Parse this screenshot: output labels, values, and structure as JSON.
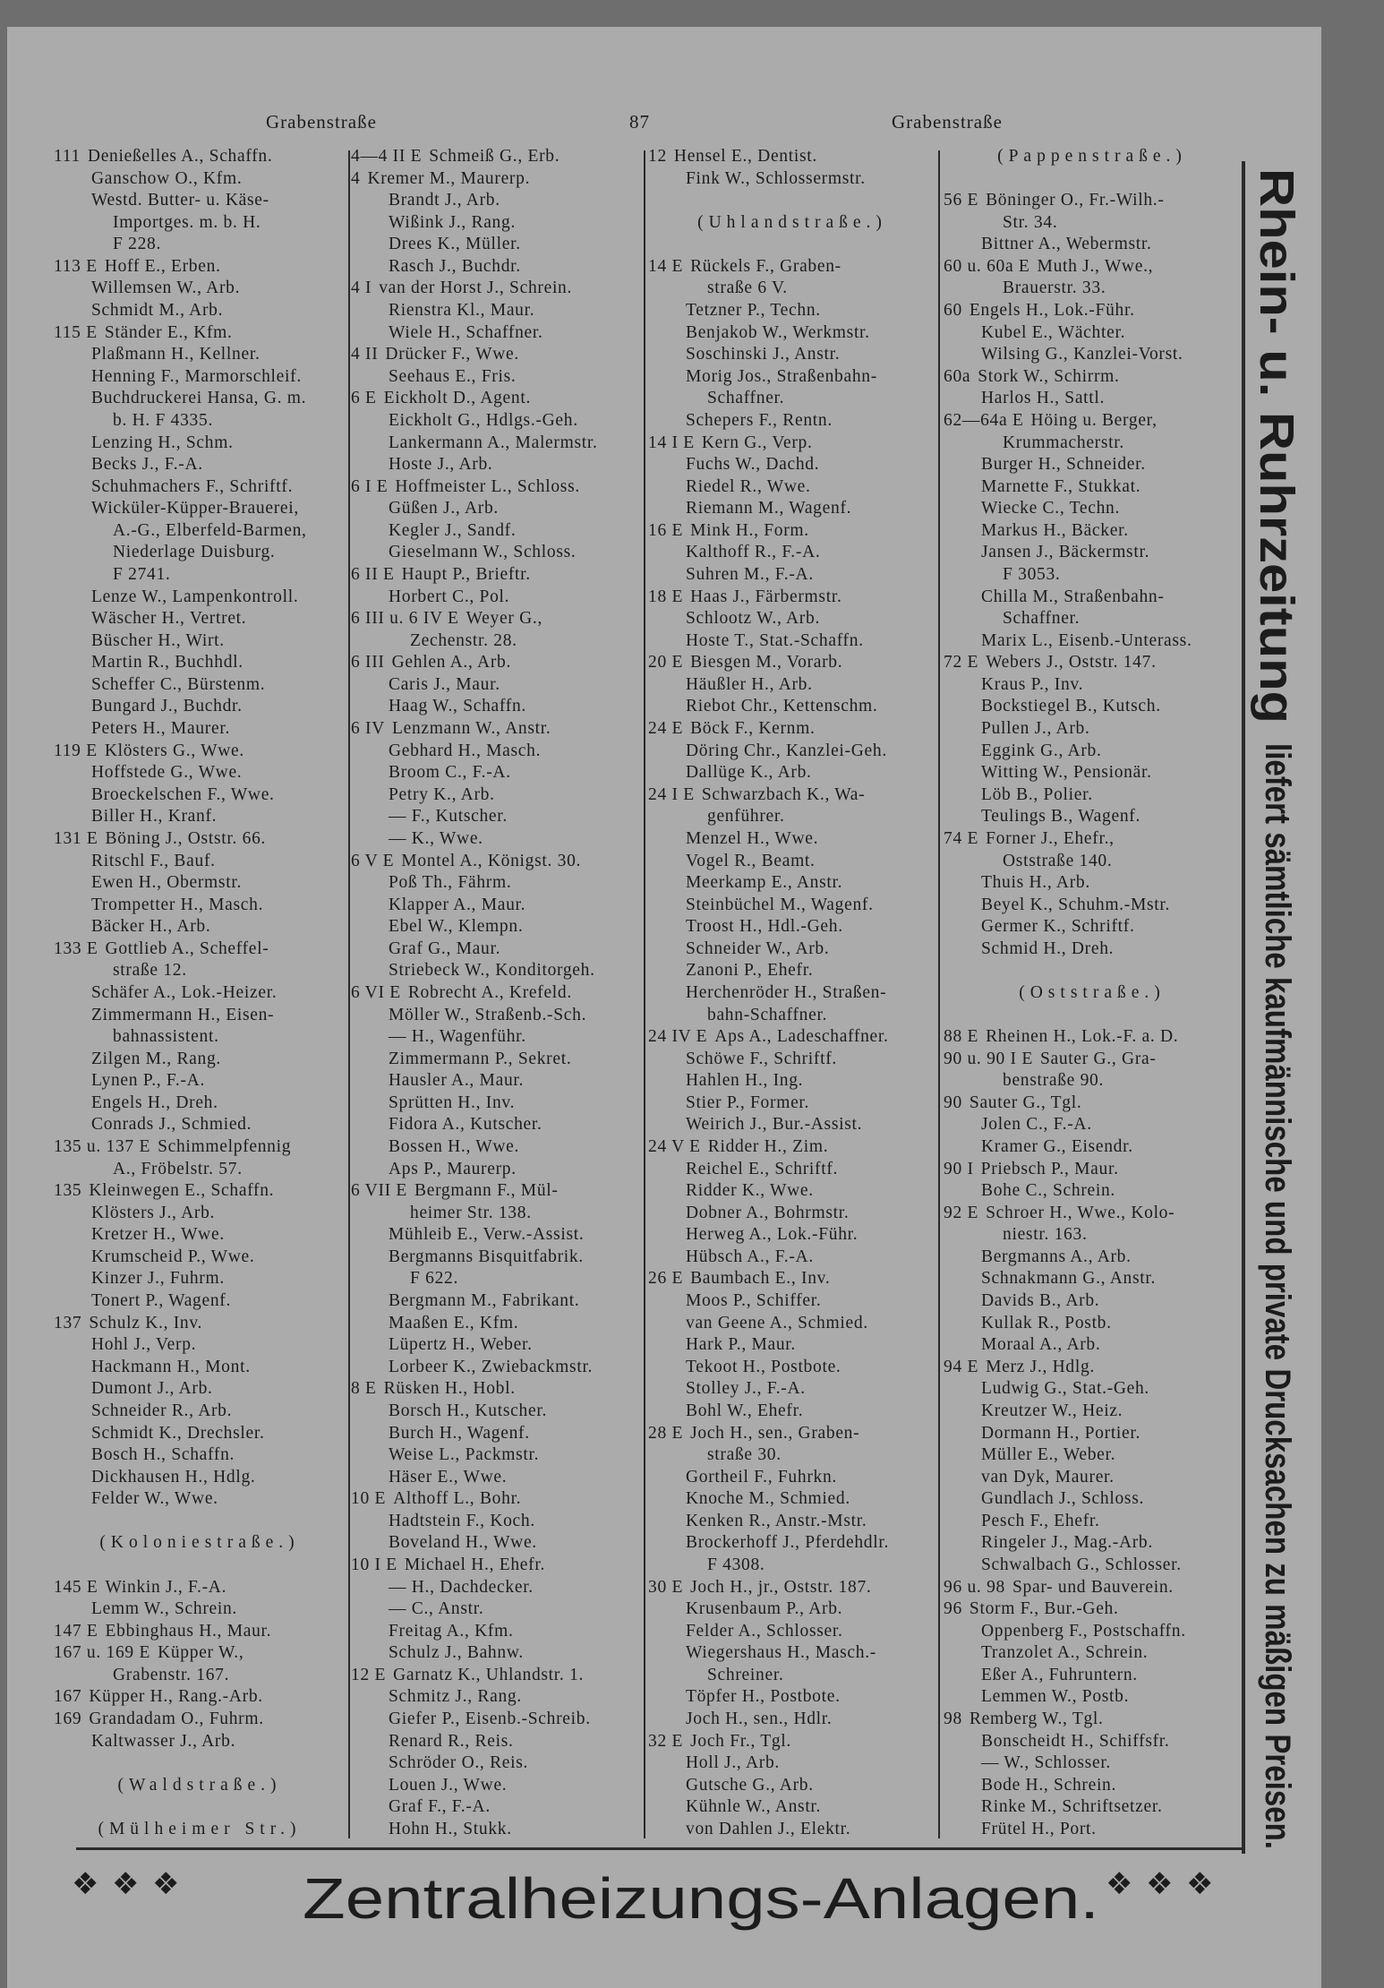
{
  "header": {
    "left": "Grabenstraße",
    "page_number": "87",
    "right": "Grabenstraße"
  },
  "columns": [
    {
      "lines": [
        {
          "no": "111",
          "t": "Denießelles A., Schaffn."
        },
        {
          "t": "Ganschow O., Kfm."
        },
        {
          "t": "Westd. Butter- u. Käse-"
        },
        {
          "c": "Importges. m. b. H."
        },
        {
          "c": "F 228."
        },
        {
          "no": "113 E",
          "t": "Hoff E., Erben."
        },
        {
          "t": "Willemsen W., Arb."
        },
        {
          "t": "Schmidt M., Arb."
        },
        {
          "no": "115 E",
          "t": "Ständer E., Kfm."
        },
        {
          "t": "Plaßmann H., Kellner."
        },
        {
          "t": "Henning F., Marmorschleif."
        },
        {
          "t": "Buchdruckerei Hansa, G. m."
        },
        {
          "c": "b. H. F 4335."
        },
        {
          "t": "Lenzing H., Schm."
        },
        {
          "t": "Becks J., F.-A."
        },
        {
          "t": "Schuhmachers F., Schriftf."
        },
        {
          "t": "Wicküler-Küpper-Brauerei,"
        },
        {
          "c": "A.-G., Elberfeld-Barmen,"
        },
        {
          "c": "Niederlage Duisburg."
        },
        {
          "c": "F 2741."
        },
        {
          "t": "Lenze W., Lampenkontroll."
        },
        {
          "t": "Wäscher H., Vertret."
        },
        {
          "t": "Büscher H., Wirt."
        },
        {
          "t": "Martin R., Buchhdl."
        },
        {
          "t": "Scheffer C., Bürstenm."
        },
        {
          "t": "Bungard J., Buchdr."
        },
        {
          "t": "Peters H., Maurer."
        },
        {
          "no": "119 E",
          "t": "Klösters G., Wwe."
        },
        {
          "t": "Hoffstede G., Wwe."
        },
        {
          "t": "Broeckelschen F., Wwe."
        },
        {
          "t": "Biller H., Kranf."
        },
        {
          "no": "131 E",
          "t": "Böning J., Oststr. 66."
        },
        {
          "t": "Ritschl F., Bauf."
        },
        {
          "t": "Ewen H., Obermstr."
        },
        {
          "t": "Trompetter H., Masch."
        },
        {
          "t": "Bäcker H., Arb."
        },
        {
          "no": "133 E",
          "t": "Gottlieb A., Scheffel-"
        },
        {
          "c": "straße 12."
        },
        {
          "t": "Schäfer A., Lok.-Heizer."
        },
        {
          "t": "Zimmermann H., Eisen-"
        },
        {
          "c": "bahnassistent."
        },
        {
          "t": "Zilgen M., Rang."
        },
        {
          "t": "Lynen P., F.-A."
        },
        {
          "t": "Engels H., Dreh."
        },
        {
          "t": "Conrads J., Schmied."
        },
        {
          "no": "135 u. 137 E",
          "t": "Schimmelpfennig"
        },
        {
          "c": "A., Fröbelstr. 57."
        },
        {
          "no": "135",
          "t": "Kleinwegen E., Schaffn."
        },
        {
          "t": "Klösters J., Arb."
        },
        {
          "t": "Kretzer H., Wwe."
        },
        {
          "t": "Krumscheid P., Wwe."
        },
        {
          "t": "Kinzer J., Fuhrm."
        },
        {
          "t": "Tonert P., Wagenf."
        },
        {
          "no": "137",
          "t": "Schulz K., Inv."
        },
        {
          "t": "Hohl J., Verp."
        },
        {
          "t": "Hackmann H., Mont."
        },
        {
          "t": "Dumont J., Arb."
        },
        {
          "t": "Schneider R., Arb."
        },
        {
          "t": "Schmidt K., Drechsler."
        },
        {
          "t": "Bosch H., Schaffn."
        },
        {
          "t": "Dickhausen H., Hdlg."
        },
        {
          "t": "Felder W., Wwe."
        },
        {},
        {
          "h": "(Koloniestraße.)"
        },
        {},
        {
          "no": "145 E",
          "t": "Winkin J., F.-A."
        },
        {
          "t": "Lemm W., Schrein."
        },
        {
          "no": "147 E",
          "t": "Ebbinghaus H., Maur."
        },
        {
          "no": "167 u. 169 E",
          "t": "Küpper W.,"
        },
        {
          "c": "Grabenstr. 167."
        },
        {
          "no": "167",
          "t": "Küpper H., Rang.-Arb."
        },
        {
          "no": "169",
          "t": "Grandadam O., Fuhrm."
        },
        {
          "t": "Kaltwasser J., Arb."
        },
        {},
        {
          "h": "(Waldstraße.)"
        },
        {},
        {
          "h": "(Mülheimer Str.)"
        }
      ]
    },
    {
      "lines": [
        {
          "no": "4—4 II E",
          "t": "Schmeiß G., Erb."
        },
        {
          "no": "4",
          "t": "Kremer M., Maurerp."
        },
        {
          "t": "Brandt J., Arb."
        },
        {
          "t": "Wißink J., Rang."
        },
        {
          "t": "Drees K., Müller."
        },
        {
          "t": "Rasch J., Buchdr."
        },
        {
          "no": "4 I",
          "t": "van der Horst J., Schrein."
        },
        {
          "t": "Rienstra Kl., Maur."
        },
        {
          "t": "Wiele H., Schaffner."
        },
        {
          "no": "4 II",
          "t": "Drücker F., Wwe."
        },
        {
          "t": "Seehaus E., Fris."
        },
        {
          "no": "6 E",
          "t": "Eickholt D., Agent."
        },
        {
          "t": "Eickholt G., Hdlgs.-Geh."
        },
        {
          "t": "Lankermann A., Malermstr."
        },
        {
          "t": "Hoste J., Arb."
        },
        {
          "no": "6 I E",
          "t": "Hoffmeister L., Schloss."
        },
        {
          "t": "Güßen J., Arb."
        },
        {
          "t": "Kegler J., Sandf."
        },
        {
          "t": "Gieselmann W., Schloss."
        },
        {
          "no": "6 II E",
          "t": "Haupt P., Brieftr."
        },
        {
          "t": "Horbert C., Pol."
        },
        {
          "no": "6 III u. 6 IV E",
          "t": "Weyer G.,"
        },
        {
          "c": "Zechenstr. 28."
        },
        {
          "no": "6 III",
          "t": "Gehlen A., Arb."
        },
        {
          "t": "Caris J., Maur."
        },
        {
          "t": "Haag W., Schaffn."
        },
        {
          "no": "6 IV",
          "t": "Lenzmann W., Anstr."
        },
        {
          "t": "Gebhard H., Masch."
        },
        {
          "t": "Broom C., F.-A."
        },
        {
          "t": "Petry K., Arb."
        },
        {
          "t": "— F., Kutscher."
        },
        {
          "t": "— K., Wwe."
        },
        {
          "no": "6 V E",
          "t": "Montel A., Königst. 30."
        },
        {
          "t": "Poß Th., Fährm."
        },
        {
          "t": "Klapper A., Maur."
        },
        {
          "t": "Ebel W., Klempn."
        },
        {
          "t": "Graf G., Maur."
        },
        {
          "t": "Striebeck W., Konditorgeh."
        },
        {
          "no": "6 VI E",
          "t": "Robrecht A., Krefeld."
        },
        {
          "t": "Möller W., Straßenb.-Sch."
        },
        {
          "t": "— H., Wagenführ."
        },
        {
          "t": "Zimmermann P., Sekret."
        },
        {
          "t": "Hausler A., Maur."
        },
        {
          "t": "Sprütten H., Inv."
        },
        {
          "t": "Fidora A., Kutscher."
        },
        {
          "t": "Bossen H., Wwe."
        },
        {
          "t": "Aps P., Maurerp."
        },
        {
          "no": "6 VII E",
          "t": "Bergmann F., Mül-"
        },
        {
          "c": "heimer Str. 138."
        },
        {
          "t": "Mühleib E., Verw.-Assist."
        },
        {
          "t": "Bergmanns Bisquitfabrik."
        },
        {
          "c": "F 622."
        },
        {
          "t": "Bergmann M., Fabrikant."
        },
        {
          "t": "Maaßen E., Kfm."
        },
        {
          "t": "Lüpertz H., Weber."
        },
        {
          "t": "Lorbeer K., Zwiebackmstr."
        },
        {
          "no": "8 E",
          "t": "Rüsken H., Hobl."
        },
        {
          "t": "Borsch H., Kutscher."
        },
        {
          "t": "Burch H., Wagenf."
        },
        {
          "t": "Weise L., Packmstr."
        },
        {
          "t": "Häser E., Wwe."
        },
        {
          "no": "10 E",
          "t": "Althoff L., Bohr."
        },
        {
          "t": "Hadtstein F., Koch."
        },
        {
          "t": "Boveland H., Wwe."
        },
        {
          "no": "10 I E",
          "t": "Michael H., Ehefr."
        },
        {
          "t": "— H., Dachdecker."
        },
        {
          "t": "— C., Anstr."
        },
        {
          "t": "Freitag A., Kfm."
        },
        {
          "t": "Schulz J., Bahnw."
        },
        {
          "no": "12 E",
          "t": "Garnatz K., Uhlandstr. 1."
        },
        {
          "t": "Schmitz J., Rang."
        },
        {
          "t": "Giefer P., Eisenb.-Schreib."
        },
        {
          "t": "Renard R., Reis."
        },
        {
          "t": "Schröder O., Reis."
        },
        {
          "t": "Louen J., Wwe."
        },
        {
          "t": "Graf F., F.-A."
        },
        {
          "t": "Hohn H., Stukk."
        }
      ]
    },
    {
      "lines": [
        {
          "no": "12",
          "t": "Hensel E., Dentist."
        },
        {
          "t": "Fink W., Schlossermstr."
        },
        {},
        {
          "h": "(Uhlandstraße.)"
        },
        {},
        {
          "no": "14 E",
          "t": "Rückels F., Graben-"
        },
        {
          "c": "straße 6 V."
        },
        {
          "t": "Tetzner P., Techn."
        },
        {
          "t": "Benjakob W., Werkmstr."
        },
        {
          "t": "Soschinski J., Anstr."
        },
        {
          "t": "Morig Jos., Straßenbahn-"
        },
        {
          "c": "Schaffner."
        },
        {
          "t": "Schepers F., Rentn."
        },
        {
          "no": "14 I E",
          "t": "Kern G., Verp."
        },
        {
          "t": "Fuchs W., Dachd."
        },
        {
          "t": "Riedel R., Wwe."
        },
        {
          "t": "Riemann M., Wagenf."
        },
        {
          "no": "16 E",
          "t": "Mink H., Form."
        },
        {
          "t": "Kalthoff R., F.-A."
        },
        {
          "t": "Suhren M., F.-A."
        },
        {
          "no": "18 E",
          "t": "Haas J., Färbermstr."
        },
        {
          "t": "Schlootz W., Arb."
        },
        {
          "t": "Hoste T., Stat.-Schaffn."
        },
        {
          "no": "20 E",
          "t": "Biesgen M., Vorarb."
        },
        {
          "t": "Häußler H., Arb."
        },
        {
          "t": "Riebot Chr., Kettenschm."
        },
        {
          "no": "24 E",
          "t": "Böck F., Kernm."
        },
        {
          "t": "Döring Chr., Kanzlei-Geh."
        },
        {
          "t": "Dallüge K., Arb."
        },
        {
          "no": "24 I E",
          "t": "Schwarzbach K., Wa-"
        },
        {
          "c": "genführer."
        },
        {
          "t": "Menzel H., Wwe."
        },
        {
          "t": "Vogel R., Beamt."
        },
        {
          "t": "Meerkamp E., Anstr."
        },
        {
          "t": "Steinbüchel M., Wagenf."
        },
        {
          "t": "Troost H., Hdl.-Geh."
        },
        {
          "t": "Schneider W., Arb."
        },
        {
          "t": "Zanoni P., Ehefr."
        },
        {
          "t": "Herchenröder H., Straßen-"
        },
        {
          "c": "bahn-Schaffner."
        },
        {
          "no": "24 IV E",
          "t": "Aps A., Ladeschaffner."
        },
        {
          "t": "Schöwe F., Schriftf."
        },
        {
          "t": "Hahlen H., Ing."
        },
        {
          "t": "Stier P., Former."
        },
        {
          "t": "Weirich J., Bur.-Assist."
        },
        {
          "no": "24 V E",
          "t": "Ridder H., Zim."
        },
        {
          "t": "Reichel E., Schriftf."
        },
        {
          "t": "Ridder K., Wwe."
        },
        {
          "t": "Dobner A., Bohrmstr."
        },
        {
          "t": "Herweg A., Lok.-Führ."
        },
        {
          "t": "Hübsch A., F.-A."
        },
        {
          "no": "26 E",
          "t": "Baumbach E., Inv."
        },
        {
          "t": "Moos P., Schiffer."
        },
        {
          "t": "van Geene A., Schmied."
        },
        {
          "t": "Hark P., Maur."
        },
        {
          "t": "Tekoot H., Postbote."
        },
        {
          "t": "Stolley J., F.-A."
        },
        {
          "t": "Bohl W., Ehefr."
        },
        {
          "no": "28 E",
          "t": "Joch H., sen., Graben-"
        },
        {
          "c": "straße 30."
        },
        {
          "t": "Gortheil F., Fuhrkn."
        },
        {
          "t": "Knoche M., Schmied."
        },
        {
          "t": "Kenken R., Anstr.-Mstr."
        },
        {
          "t": "Brockerhoff J., Pferdehdlr."
        },
        {
          "c": "F 4308."
        },
        {
          "no": "30 E",
          "t": "Joch H., jr., Oststr. 187."
        },
        {
          "t": "Krusenbaum P., Arb."
        },
        {
          "t": "Felder A., Schlosser."
        },
        {
          "t": "Wiegershaus H., Masch.-"
        },
        {
          "c": "Schreiner."
        },
        {
          "t": "Töpfer H., Postbote."
        },
        {
          "t": "Joch H., sen., Hdlr."
        },
        {
          "no": "32 E",
          "t": "Joch Fr., Tgl."
        },
        {
          "t": "Holl J., Arb."
        },
        {
          "t": "Gutsche G., Arb."
        },
        {
          "t": "Kühnle W., Anstr."
        },
        {
          "t": "von Dahlen J., Elektr."
        }
      ]
    },
    {
      "lines": [
        {
          "h": "(Pappenstraße.)"
        },
        {},
        {
          "no": "56 E",
          "t": "Böninger O., Fr.-Wilh.-"
        },
        {
          "c": "Str. 34."
        },
        {
          "t": "Bittner A., Webermstr."
        },
        {
          "no": "60 u. 60a E",
          "t": "Muth J., Wwe.,"
        },
        {
          "c": "Brauerstr. 33."
        },
        {
          "no": "60",
          "t": "Engels H., Lok.-Führ."
        },
        {
          "t": "Kubel E., Wächter."
        },
        {
          "t": "Wilsing G., Kanzlei-Vorst."
        },
        {
          "no": "60a",
          "t": "Stork W., Schirrm."
        },
        {
          "t": "Harlos H., Sattl."
        },
        {
          "no": "62—64a E",
          "t": "Höing u. Berger,"
        },
        {
          "c": "Krummacherstr."
        },
        {
          "t": "Burger H., Schneider."
        },
        {
          "t": "Marnette F., Stukkat."
        },
        {
          "t": "Wiecke C., Techn."
        },
        {
          "t": "Markus H., Bäcker."
        },
        {
          "t": "Jansen J., Bäckermstr."
        },
        {
          "c": "F 3053."
        },
        {
          "t": "Chilla M., Straßenbahn-"
        },
        {
          "c": "Schaffner."
        },
        {
          "t": "Marix L., Eisenb.-Unterass."
        },
        {
          "no": "72 E",
          "t": "Webers J., Oststr. 147."
        },
        {
          "t": "Kraus P., Inv."
        },
        {
          "t": "Bockstiegel B., Kutsch."
        },
        {
          "t": "Pullen J., Arb."
        },
        {
          "t": "Eggink G., Arb."
        },
        {
          "t": "Witting W., Pensionär."
        },
        {
          "t": "Löb B., Polier."
        },
        {
          "t": "Teulings B., Wagenf."
        },
        {
          "no": "74 E",
          "t": "Forner J., Ehefr.,"
        },
        {
          "c": "Oststraße 140."
        },
        {
          "t": "Thuis H., Arb."
        },
        {
          "t": "Beyel K., Schuhm.-Mstr."
        },
        {
          "t": "Germer K., Schriftf."
        },
        {
          "t": "Schmid H., Dreh."
        },
        {},
        {
          "h": "(Oststraße.)"
        },
        {},
        {
          "no": "88 E",
          "t": "Rheinen H., Lok.-F. a. D."
        },
        {
          "no": "90 u. 90 I E",
          "t": "Sauter G., Gra-"
        },
        {
          "c": "benstraße 90."
        },
        {
          "no": "90",
          "t": "Sauter G., Tgl."
        },
        {
          "t": "Jolen C., F.-A."
        },
        {
          "t": "Kramer G., Eisendr."
        },
        {
          "no": "90 I",
          "t": "Priebsch P., Maur."
        },
        {
          "t": "Bohe C., Schrein."
        },
        {
          "no": "92 E",
          "t": "Schroer H., Wwe., Kolo-"
        },
        {
          "c": "niestr. 163."
        },
        {
          "t": "Bergmanns A., Arb."
        },
        {
          "t": "Schnakmann G., Anstr."
        },
        {
          "t": "Davids B., Arb."
        },
        {
          "t": "Kullak R., Postb."
        },
        {
          "t": "Moraal A., Arb."
        },
        {
          "no": "94 E",
          "t": "Merz J., Hdlg."
        },
        {
          "t": "Ludwig G., Stat.-Geh."
        },
        {
          "t": "Kreutzer W., Heiz."
        },
        {
          "t": "Dormann H., Portier."
        },
        {
          "t": "Müller E., Weber."
        },
        {
          "t": "van Dyk, Maurer."
        },
        {
          "t": "Gundlach J., Schloss."
        },
        {
          "t": "Pesch F., Ehefr."
        },
        {
          "t": "Ringeler J., Mag.-Arb."
        },
        {
          "t": "Schwalbach G., Schlosser."
        },
        {
          "no": "96 u. 98",
          "t": "Spar- und Bauverein."
        },
        {
          "no": "96",
          "t": "Storm F., Bur.-Geh."
        },
        {
          "t": "Oppenberg F., Postschaffn."
        },
        {
          "t": "Tranzolet A., Schrein."
        },
        {
          "t": "Eßer A., Fuhruntern."
        },
        {
          "t": "Lemmen W., Postb."
        },
        {
          "no": "98",
          "t": "Remberg W., Tgl."
        },
        {
          "t": "Bonscheidt H., Schiffsfr."
        },
        {
          "t": "— W., Schlosser."
        },
        {
          "t": "Bode H., Schrein."
        },
        {
          "t": "Rinke M., Schriftsetzer."
        },
        {
          "t": "Frütel H., Port."
        }
      ]
    }
  ],
  "side_ad": {
    "title": "Rhein- u. Ruhrzeitung",
    "text": "liefert sämtliche kaufmännische und private Drucksachen zu mäßigen Preisen."
  },
  "bottom_ad": {
    "text": "Zentralheizungs-Anlagen.",
    "ornament": "❖"
  },
  "colors": {
    "paper": "#ababab",
    "ink": "#1c1c1c",
    "scan_border": "#6e6e6e"
  }
}
